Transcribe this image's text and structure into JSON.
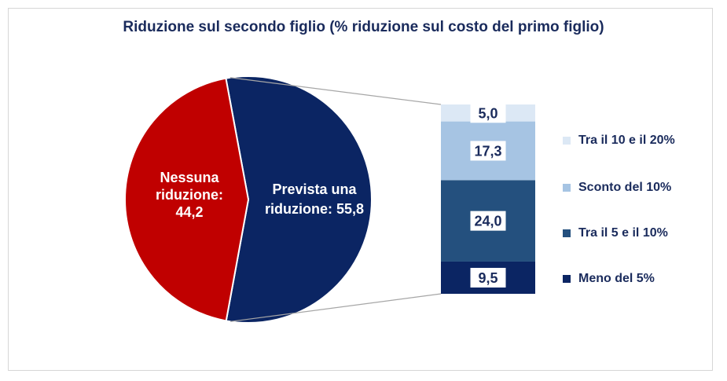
{
  "chart_data": {
    "type": "pie",
    "title": "Riduzione sul secondo figlio (% riduzione sul costo del primo figlio)",
    "pie": {
      "slices": [
        {
          "label_lines": [
            "Nessuna",
            "riduzione:",
            "44,2"
          ],
          "value": 44.2,
          "color": "#c00000"
        },
        {
          "label_lines": [
            "Prevista una",
            "riduzione: 55,8"
          ],
          "value": 55.8,
          "color": "#0b2563"
        }
      ]
    },
    "breakdown": {
      "type": "stacked-bar",
      "segments": [
        {
          "name": "Meno del 5%",
          "value": 9.5,
          "label": "9,5",
          "color": "#0b2563"
        },
        {
          "name": "Tra il 5 e il 10%",
          "value": 24.0,
          "label": "24,0",
          "color": "#24507e"
        },
        {
          "name": "Sconto del 10%",
          "value": 17.3,
          "label": "17,3",
          "color": "#a6c4e3"
        },
        {
          "name": "Tra il 10 e il 20%",
          "value": 5.0,
          "label": "5,0",
          "color": "#dce8f5"
        }
      ]
    },
    "legend": {
      "placement": "right",
      "items": [
        {
          "label": "Tra il 10 e il 20%",
          "color": "#dce8f5"
        },
        {
          "label": "Sconto del 10%",
          "color": "#a6c4e3"
        },
        {
          "label": "Tra il 5 e il 10%",
          "color": "#24507e"
        },
        {
          "label": "Meno del 5%",
          "color": "#0b2563"
        }
      ]
    }
  }
}
